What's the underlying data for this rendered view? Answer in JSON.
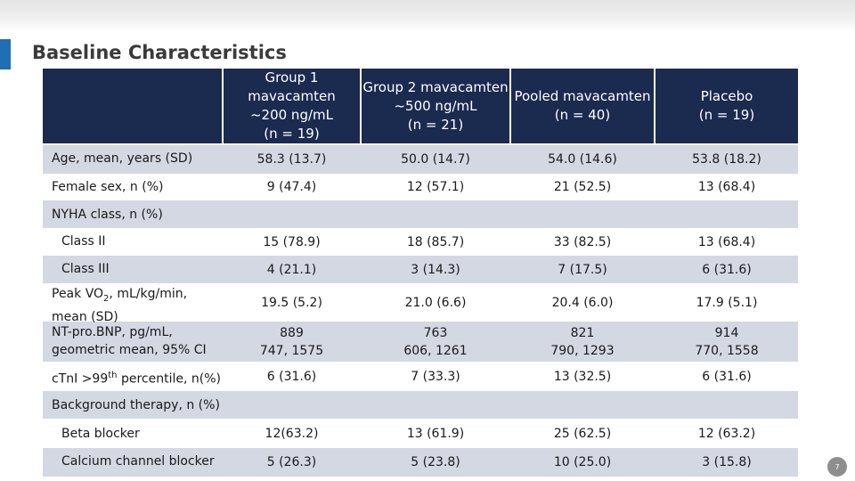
{
  "slide": {
    "title": "Baseline Characteristics",
    "page_number": "7"
  },
  "table": {
    "columns": [
      {
        "lines": [
          "Group 1",
          "mavacamten",
          "~200 ng/mL",
          "(n = 19)"
        ]
      },
      {
        "lines": [
          "Group 2 mavacamten",
          "~500 ng/mL",
          "(n = 21)"
        ]
      },
      {
        "lines": [
          "Pooled mavacamten",
          "(n = 40)"
        ]
      },
      {
        "lines": [
          "Placebo",
          "(n = 19)"
        ]
      }
    ],
    "rows": {
      "age": {
        "label": "Age, mean, years (SD)",
        "values": [
          "58.3 (13.7)",
          "50.0 (14.7)",
          "54.0 (14.6)",
          "53.8 (18.2)"
        ]
      },
      "female": {
        "label": "Female sex, n (%)",
        "values": [
          "9 (47.4)",
          "12 (57.1)",
          "21 (52.5)",
          "13 (68.4)"
        ]
      },
      "nyha_section": {
        "label": "NYHA class, n (%)"
      },
      "class2": {
        "label": "Class II",
        "values": [
          "15 (78.9)",
          "18 (85.7)",
          "33 (82.5)",
          "13 (68.4)"
        ]
      },
      "class3": {
        "label": "Class III",
        "values": [
          "4 (21.1)",
          "3 (14.3)",
          "7 (17.5)",
          "6 (31.6)"
        ]
      },
      "peak_vo2": {
        "label_pre": "Peak VO",
        "label_sub": "2",
        "label_post": ", mL/kg/min,",
        "label_line2": "mean (SD)",
        "values": [
          "19.5 (5.2)",
          "21.0 (6.6)",
          "20.4 (6.0)",
          "17.9 (5.1)"
        ]
      },
      "ntprobnp": {
        "label_line1": "NT-pro.BNP, pg/mL,",
        "label_line2": "geometric mean, 95% CI",
        "values": [
          [
            "889",
            "747, 1575"
          ],
          [
            "763",
            "606, 1261"
          ],
          [
            "821",
            "790, 1293"
          ],
          [
            "914",
            "770, 1558"
          ]
        ]
      },
      "ctni": {
        "label_pre": "cTnI >99",
        "label_sup": "th",
        "label_post": " percentile, n(%)",
        "values": [
          "6 (31.6)",
          "7 (33.3)",
          "13 (32.5)",
          "6 (31.6)"
        ]
      },
      "bg_section": {
        "label": "Background therapy, n (%)"
      },
      "beta": {
        "label": "Beta blocker",
        "values": [
          "12(63.2)",
          "13 (61.9)",
          "25 (62.5)",
          "12 (63.2)"
        ]
      },
      "ccb": {
        "label": "Calcium channel blocker",
        "values": [
          "5 (26.3)",
          "5 (23.8)",
          "10 (25.0)",
          "3 (15.8)"
        ]
      }
    }
  }
}
